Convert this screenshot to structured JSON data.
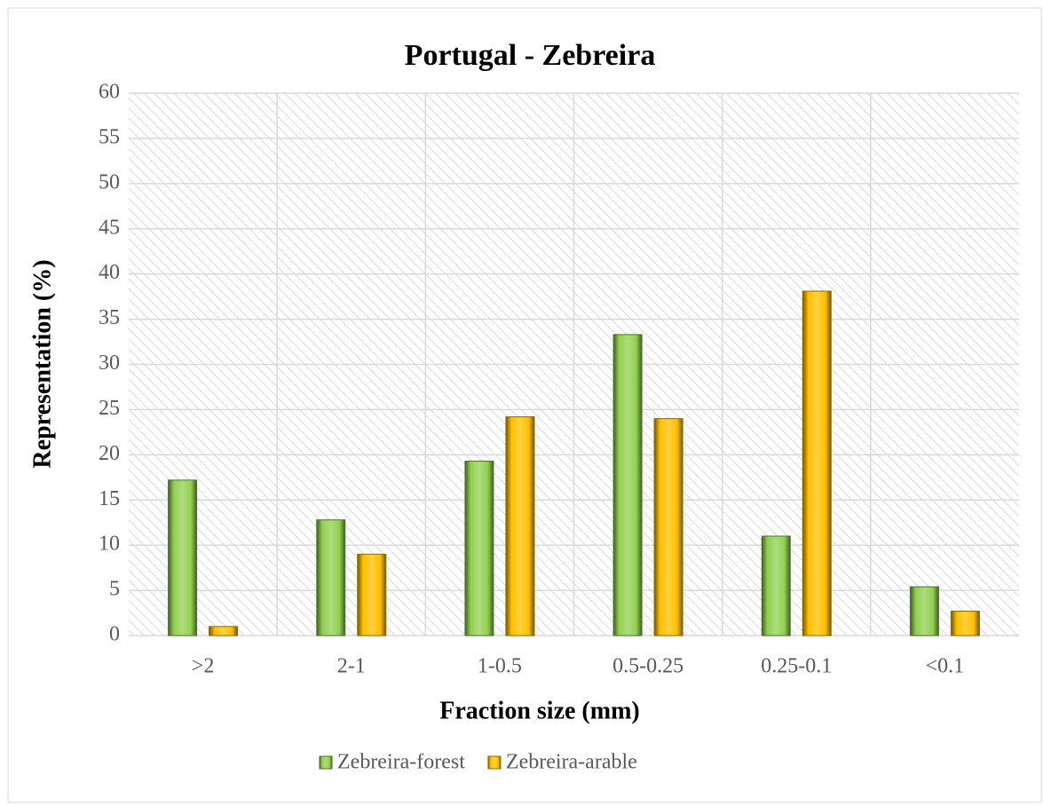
{
  "chart_data": {
    "type": "bar",
    "title": "Portugal - Zebreira",
    "xlabel": "Fraction size (mm)",
    "ylabel": "Representation (%)",
    "categories": [
      ">2",
      "2-1",
      "1-0.5",
      "0.5-0.25",
      "0.25-0.1",
      "<0.1"
    ],
    "series": [
      {
        "name": "Zebreira-forest",
        "color": "#92d050",
        "values": [
          17.2,
          12.8,
          19.3,
          33.3,
          11,
          5.4
        ]
      },
      {
        "name": "Zebreira-arable",
        "color": "#ffc000",
        "values": [
          1,
          9,
          24.2,
          24,
          38.1,
          2.7
        ]
      }
    ],
    "ylim": [
      0,
      60
    ],
    "yticks": [
      0,
      5,
      10,
      15,
      20,
      25,
      30,
      35,
      40,
      45,
      50,
      55,
      60
    ],
    "grid": true,
    "legend": "bottom"
  }
}
